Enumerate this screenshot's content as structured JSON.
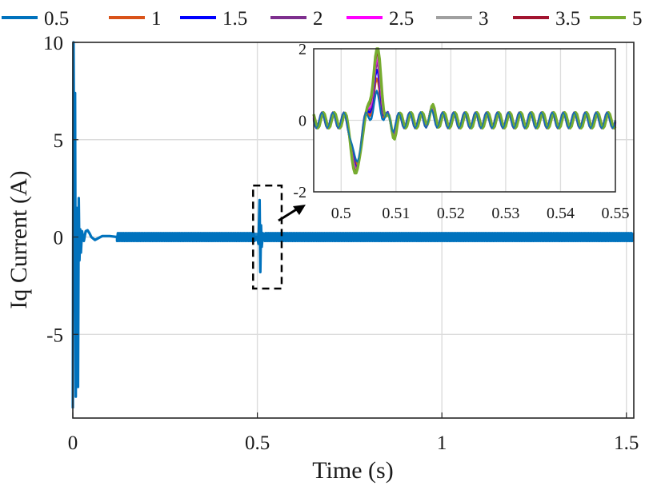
{
  "chart_data": {
    "type": "line",
    "xlabel": "Time (s)",
    "ylabel": "Iq Current (A)",
    "xlim": [
      0,
      1.52
    ],
    "ylim": [
      -9.3,
      10
    ],
    "xticks": [
      {
        "value": 0,
        "label": "0"
      },
      {
        "value": 0.5,
        "label": "0.5"
      },
      {
        "value": 1,
        "label": "1"
      },
      {
        "value": 1.5,
        "label": "1.5"
      }
    ],
    "yticks": [
      {
        "value": 10,
        "label": "10"
      },
      {
        "value": 5,
        "label": "5"
      },
      {
        "value": 0,
        "label": "0"
      },
      {
        "value": -5,
        "label": "-5"
      }
    ],
    "grid": true,
    "legend_position": "top, horizontal",
    "series": [
      {
        "name": "0.5",
        "color": "#0072BD",
        "inset_peak": 0.6,
        "inset_trough": -1.3
      },
      {
        "name": "1",
        "color": "#D95319",
        "inset_peak": 0.95,
        "inset_trough": -1.4
      },
      {
        "name": "1.5",
        "color": "#0000FF",
        "inset_peak": 1.2,
        "inset_trough": -1.5
      },
      {
        "name": "2",
        "color": "#7E2F8E",
        "inset_peak": 1.4,
        "inset_trough": -1.55
      },
      {
        "name": "2.5",
        "color": "#FF00FF",
        "inset_peak": 1.55,
        "inset_trough": -1.6
      },
      {
        "name": "3",
        "color": "#A0A0A0",
        "inset_peak": 1.65,
        "inset_trough": -1.62
      },
      {
        "name": "3.5",
        "color": "#A2142F",
        "inset_peak": 1.75,
        "inset_trough": -1.65
      },
      {
        "name": "5",
        "color": "#77AC30",
        "inset_peak": 1.9,
        "inset_trough": -1.7
      }
    ],
    "main_trace": {
      "startup": [
        [
          0.0,
          -8.8
        ],
        [
          0.002,
          10.0
        ],
        [
          0.004,
          2.0
        ],
        [
          0.006,
          7.4
        ],
        [
          0.008,
          -8.2
        ],
        [
          0.01,
          1.5
        ],
        [
          0.012,
          0.2
        ],
        [
          0.014,
          -7.7
        ],
        [
          0.016,
          2.0
        ],
        [
          0.018,
          -1.2
        ],
        [
          0.02,
          0.4
        ],
        [
          0.022,
          -0.8
        ],
        [
          0.025,
          0.3
        ],
        [
          0.03,
          -0.2
        ],
        [
          0.035,
          0.3
        ],
        [
          0.04,
          0.35
        ],
        [
          0.045,
          0.2
        ],
        [
          0.05,
          0.0
        ],
        [
          0.06,
          -0.15
        ],
        [
          0.07,
          -0.05
        ],
        [
          0.08,
          0.05
        ],
        [
          0.1,
          0.05
        ],
        [
          0.12,
          0.0
        ]
      ],
      "disturbance": [
        [
          0.496,
          0.0
        ],
        [
          0.5,
          0.0
        ],
        [
          0.503,
          -0.35
        ],
        [
          0.506,
          1.9
        ],
        [
          0.508,
          -1.8
        ],
        [
          0.51,
          0.6
        ],
        [
          0.512,
          -0.5
        ],
        [
          0.515,
          0.2
        ],
        [
          0.52,
          0.0
        ]
      ],
      "steady_ripple_amplitude": 0.2
    },
    "inset": {
      "xlim": [
        0.495,
        0.55
      ],
      "ylim": [
        -2,
        2
      ],
      "xticks": [
        {
          "value": 0.5,
          "label": "0.5"
        },
        {
          "value": 0.51,
          "label": "0.51"
        },
        {
          "value": 0.52,
          "label": "0.52"
        },
        {
          "value": 0.53,
          "label": "0.53"
        },
        {
          "value": 0.54,
          "label": "0.54"
        },
        {
          "value": 0.55,
          "label": "0.55"
        }
      ],
      "yticks": [
        {
          "value": 2,
          "label": "2"
        },
        {
          "value": 0,
          "label": "0"
        },
        {
          "value": -2,
          "label": "-2"
        }
      ],
      "zoom_window": {
        "x": [
          0.495,
          0.555
        ],
        "y": [
          -2.4,
          2.4
        ]
      },
      "ripple_amplitude": 0.22,
      "ripple_period": 0.002
    }
  }
}
